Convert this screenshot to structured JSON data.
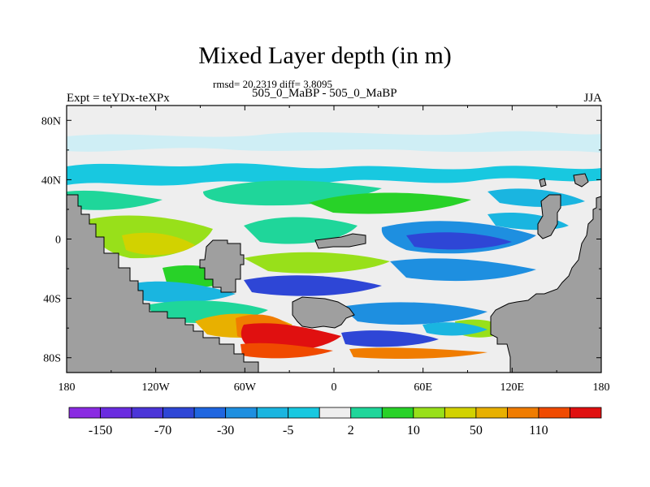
{
  "plot": {
    "title": "Mixed Layer depth (in m)",
    "stats": "rmsd= 20.2319 diff= 3.8095",
    "left_label": "Expt = teYDx-teXPx",
    "center_label": "505_0_MaBP - 505_0_MaBP",
    "right_label": "JJA"
  },
  "axes": {
    "lat_ticks": [
      {
        "value": 80,
        "label": "80N"
      },
      {
        "value": 40,
        "label": "40N"
      },
      {
        "value": 0,
        "label": "0"
      },
      {
        "value": -40,
        "label": "40S"
      },
      {
        "value": -80,
        "label": "80S"
      }
    ],
    "lon_ticks": [
      {
        "value": -180,
        "label": "180"
      },
      {
        "value": -120,
        "label": "120W"
      },
      {
        "value": -60,
        "label": "60W"
      },
      {
        "value": 0,
        "label": "0"
      },
      {
        "value": 60,
        "label": "60E"
      },
      {
        "value": 120,
        "label": "120E"
      },
      {
        "value": 180,
        "label": "180"
      }
    ]
  },
  "colorbar": {
    "labels": [
      "-150",
      "-70",
      "-30",
      "-5",
      "2",
      "10",
      "50",
      "110"
    ],
    "colors": [
      "#8a2be2",
      "#6a2ce0",
      "#4b35d8",
      "#2e46d6",
      "#1f66e0",
      "#1e8fe0",
      "#1ab5e0",
      "#18c8e0",
      "#eeeeee",
      "#1fd69a",
      "#28d228",
      "#98e01a",
      "#d2d200",
      "#e8b000",
      "#f07c00",
      "#f04a00",
      "#e01010"
    ]
  },
  "colors": {
    "land": "#9f9f9f",
    "near_zero": "#eeeeee"
  }
}
